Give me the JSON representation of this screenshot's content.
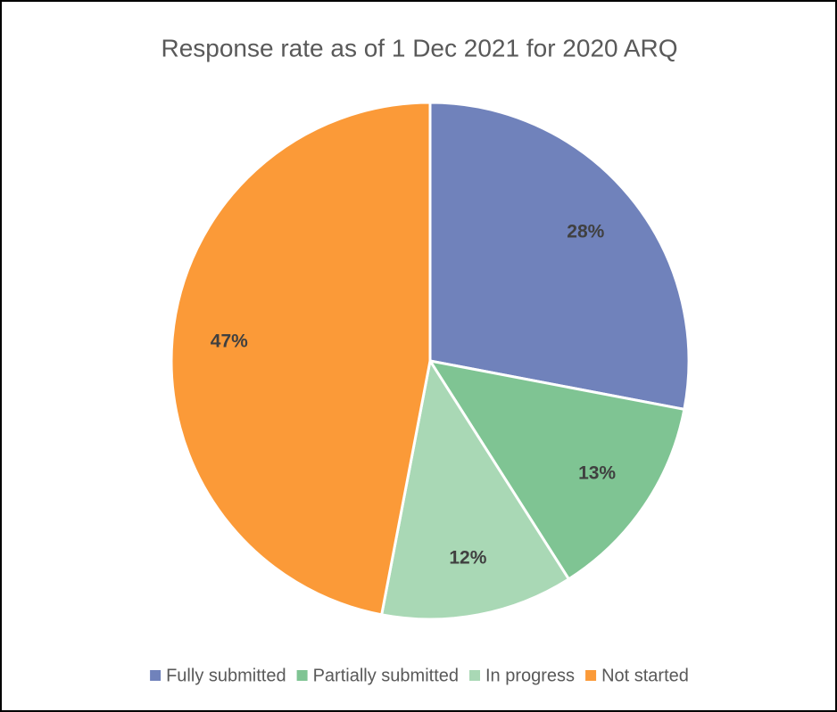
{
  "chart_data": {
    "type": "pie",
    "title": "Response rate as of 1 Dec 2021 for 2020 ARQ",
    "categories": [
      "Fully submitted",
      "Partially submitted",
      "In progress",
      "Not started"
    ],
    "values": [
      28,
      13,
      12,
      47
    ],
    "value_labels": [
      "28%",
      "13%",
      "12%",
      "47%"
    ],
    "colors": [
      "#7082bb",
      "#7fc493",
      "#a9d8b5",
      "#fb9a38"
    ],
    "legend": "bottom"
  }
}
